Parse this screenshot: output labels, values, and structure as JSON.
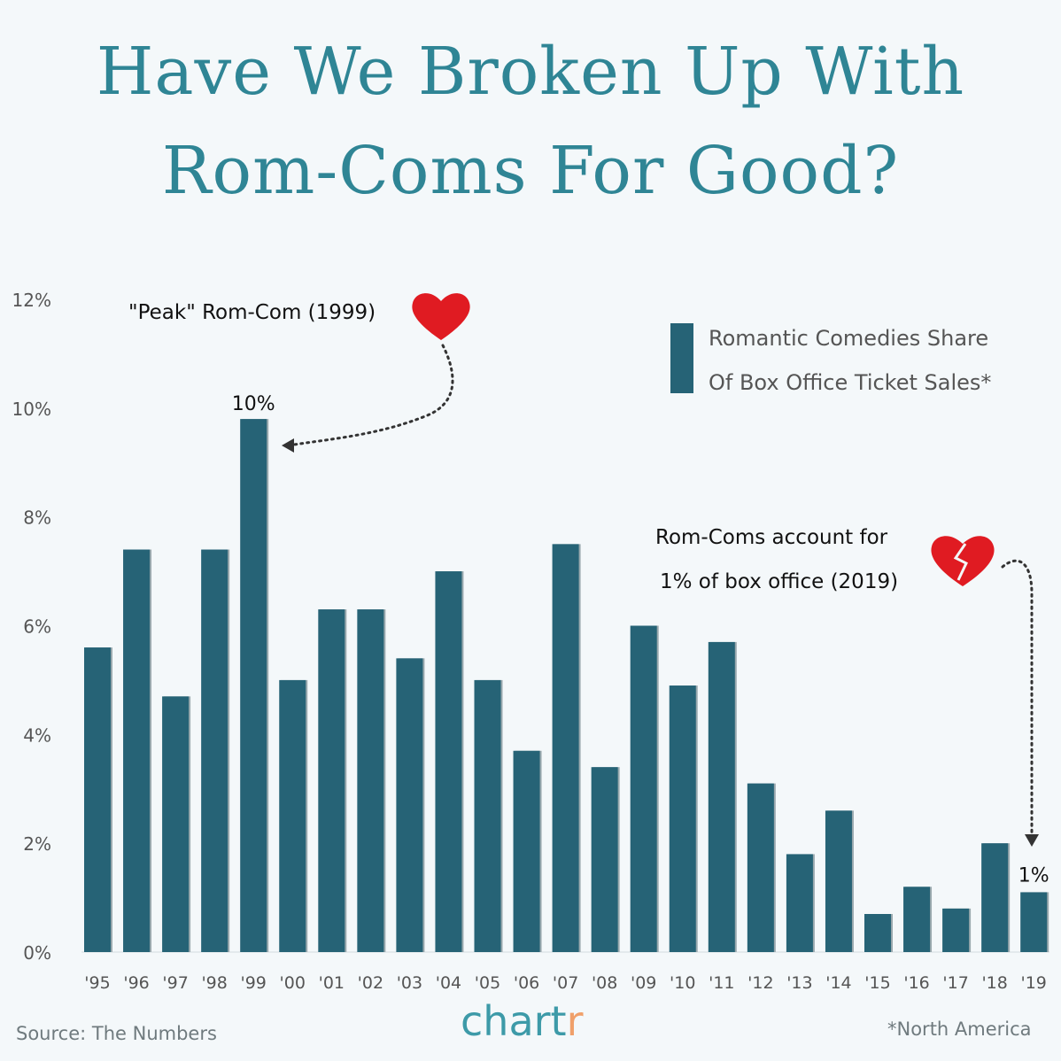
{
  "title_line1": "Have We Broken Up With",
  "title_line2": "Rom-Coms For Good?",
  "chart_data": {
    "type": "bar",
    "categories": [
      "'95",
      "'96",
      "'97",
      "'98",
      "'99",
      "'00",
      "'01",
      "'02",
      "'03",
      "'04",
      "'05",
      "'06",
      "'07",
      "'08",
      "'09",
      "'10",
      "'11",
      "'12",
      "'13",
      "'14",
      "'15",
      "'16",
      "'17",
      "'18",
      "'19"
    ],
    "values": [
      5.6,
      7.4,
      4.7,
      7.4,
      9.8,
      5.0,
      6.3,
      6.3,
      5.4,
      7.0,
      5.0,
      3.7,
      7.5,
      3.4,
      6.0,
      4.9,
      5.7,
      3.1,
      1.8,
      2.6,
      0.7,
      1.2,
      0.8,
      2.0,
      1.1
    ],
    "ylim": [
      0,
      12
    ],
    "yticks": [
      "0%",
      "2%",
      "4%",
      "6%",
      "8%",
      "10%",
      "12%"
    ],
    "grid": false,
    "legend": {
      "label_line1": "Romantic Comedies Share",
      "label_line2": "Of Box Office Ticket Sales*",
      "placement": "top-right"
    },
    "data_labels": {
      "peak": "10%",
      "last": "1%"
    },
    "annotations": {
      "peak": "\"Peak\" Rom-Com (1999)",
      "low_line1": "Rom-Coms account for",
      "low_line2": "1% of box office (2019)"
    },
    "bar_color": "#266376"
  },
  "colors": {
    "title": "#2f8595",
    "heart": "#e01b22",
    "background": "#f4f8fa"
  },
  "icons": {
    "peak": "heart-icon",
    "low": "broken-heart-icon"
  },
  "footer": {
    "source": "Source: The Numbers",
    "note": "*North America",
    "logo_main": "chart",
    "logo_accent": "r"
  }
}
